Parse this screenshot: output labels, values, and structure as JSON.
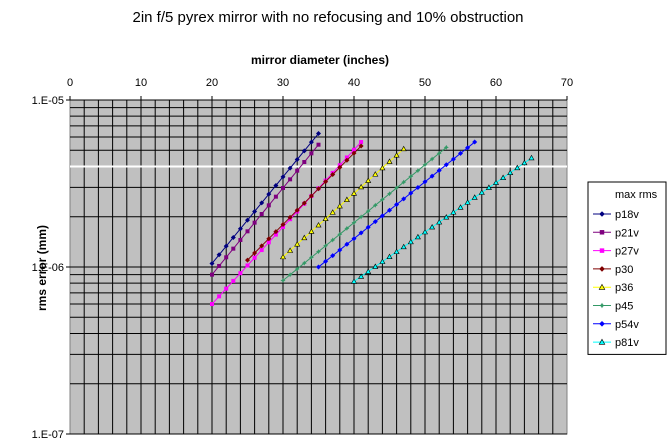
{
  "chart_data": {
    "type": "scatter",
    "title": "2in f/5 pyrex mirror with no refocusing and 10% obstruction",
    "xlabel": "mirror diameter (inches)",
    "ylabel": "rms error (mm)",
    "x_axis_position": "top",
    "xlim": [
      0,
      70
    ],
    "x_ticks": [
      "0",
      "10",
      "20",
      "30",
      "40",
      "50",
      "60",
      "70"
    ],
    "y_scale": "log",
    "ylim": [
      1e-07,
      1e-05
    ],
    "y_ticks": [
      "1.E-07",
      "1.E-06",
      "1.E-05"
    ],
    "grid": true,
    "legend_title": "max rms",
    "legend_position": "right",
    "reference_line": {
      "y": 4e-06,
      "color": "#ffffff"
    },
    "background_color": "#c0c0c0",
    "series": [
      {
        "name": "p18v",
        "color": "#00007f",
        "marker": "diamond",
        "x_start": 20,
        "x_end": 35,
        "y_start": 1.05e-06,
        "y_end": 6.3e-06,
        "points": 16
      },
      {
        "name": "p21v",
        "color": "#7f007f",
        "marker": "square",
        "x_start": 20,
        "x_end": 35,
        "y_start": 9e-07,
        "y_end": 5.4e-06,
        "points": 16
      },
      {
        "name": "p27v",
        "color": "#ff00ff",
        "marker": "square",
        "x_start": 20,
        "x_end": 41,
        "y_start": 6e-07,
        "y_end": 5.6e-06,
        "points": 22
      },
      {
        "name": "p30",
        "color": "#7f0000",
        "marker": "diamond",
        "x_start": 25,
        "x_end": 41,
        "y_start": 1.1e-06,
        "y_end": 5.3e-06,
        "points": 17
      },
      {
        "name": "p36",
        "color": "#ffff00",
        "marker": "triangle",
        "x_start": 30,
        "x_end": 47,
        "y_start": 1.15e-06,
        "y_end": 5.1e-06,
        "points": 18
      },
      {
        "name": "p45",
        "color": "#339966",
        "marker": "star",
        "x_start": 30,
        "x_end": 53,
        "y_start": 8.3e-07,
        "y_end": 5.2e-06,
        "points": 24
      },
      {
        "name": "p54v",
        "color": "#0000ff",
        "marker": "diamond",
        "x_start": 35,
        "x_end": 57,
        "y_start": 1e-06,
        "y_end": 5.6e-06,
        "points": 23
      },
      {
        "name": "p81v",
        "color": "#00ffff",
        "marker": "triangle",
        "x_start": 40,
        "x_end": 65,
        "y_start": 8.2e-07,
        "y_end": 4.5e-06,
        "points": 26
      }
    ]
  }
}
